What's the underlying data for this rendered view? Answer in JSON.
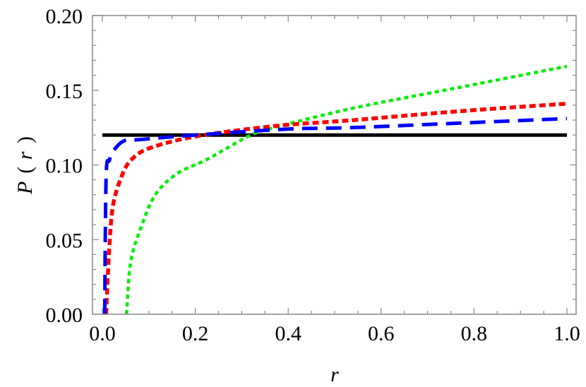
{
  "chart_data": {
    "type": "line",
    "title": "",
    "xlabel": "r",
    "ylabel": "P(r)",
    "xlim": [
      0.0,
      1.0
    ],
    "ylim": [
      0.0,
      0.2
    ],
    "grid": false,
    "legend": null,
    "x_ticks": [
      "0.0",
      "0.2",
      "0.4",
      "0.6",
      "0.8",
      "1.0"
    ],
    "x_tick_values": [
      0.0,
      0.2,
      0.4,
      0.6,
      0.8,
      1.0
    ],
    "y_ticks": [
      "0.00",
      "0.05",
      "0.10",
      "0.15",
      "0.20"
    ],
    "y_tick_values": [
      0.0,
      0.05,
      0.1,
      0.15,
      0.2
    ],
    "series": [
      {
        "name": "black-solid",
        "color": "#000000",
        "style": "solid",
        "x": [
          0.0,
          1.0
        ],
        "y": [
          0.12,
          0.12
        ]
      },
      {
        "name": "blue-dashed",
        "color": "#0000ff",
        "style": "dashed",
        "x": [
          0.005,
          0.008,
          0.015,
          0.023,
          0.046,
          0.084,
          0.2,
          0.4,
          0.541,
          0.77,
          1.0
        ],
        "y": [
          0.0,
          0.092,
          0.103,
          0.109,
          0.116,
          0.117,
          0.12,
          0.124,
          0.125,
          0.128,
          0.131
        ]
      },
      {
        "name": "red-dotted",
        "color": "#ff0000",
        "style": "dotted-thick",
        "x": [
          0.008,
          0.015,
          0.023,
          0.041,
          0.061,
          0.1,
          0.2,
          0.37,
          0.54,
          0.77,
          1.0
        ],
        "y": [
          0.0,
          0.045,
          0.073,
          0.092,
          0.103,
          0.111,
          0.119,
          0.126,
          0.13,
          0.136,
          0.141
        ]
      },
      {
        "name": "green-dotted",
        "color": "#00ee00",
        "style": "dotted",
        "x": [
          0.052,
          0.061,
          0.084,
          0.114,
          0.16,
          0.221,
          0.267,
          0.32,
          0.37,
          0.54,
          0.77,
          1.0
        ],
        "y": [
          0.0,
          0.035,
          0.059,
          0.08,
          0.094,
          0.103,
          0.111,
          0.12,
          0.125,
          0.138,
          0.152,
          0.166
        ]
      }
    ]
  },
  "labels": {
    "xlabel": "r",
    "ylabel_prefix": "P",
    "ylabel_open": "(",
    "ylabel_var": "r",
    "ylabel_close": ")"
  }
}
